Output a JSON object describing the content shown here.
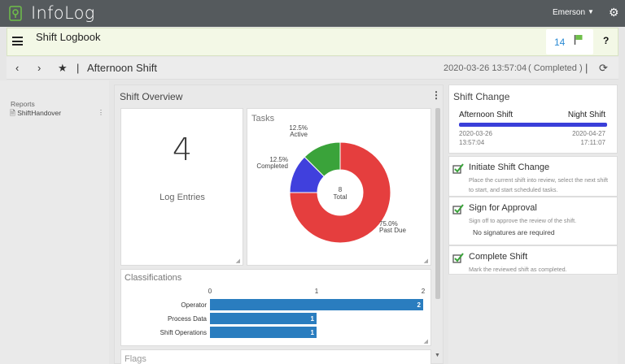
{
  "app": {
    "title": "InfoLog",
    "user": "Emerson",
    "icons": {
      "logo": "infolog-logo-icon",
      "caret": "caret-down-icon",
      "settings": "gear-icon"
    }
  },
  "logbook": {
    "title": "Shift Logbook",
    "flag_count": "14",
    "help": "?"
  },
  "nav": {
    "back": "‹",
    "forward": "›",
    "star": "★",
    "shift_name": "Afternoon Shift",
    "datetime": "2020-03-26 13:57:04",
    "status": "( Completed )"
  },
  "sidebar": {
    "section": "Reports",
    "items": [
      {
        "label": "ShiftHandover"
      }
    ]
  },
  "overview": {
    "title": "Shift Overview",
    "log_count": "4",
    "log_label": "Log Entries",
    "tasks_title": "Tasks",
    "classifications_title": "Classifications",
    "flags_title": "Flags"
  },
  "chart_data": [
    {
      "type": "pie",
      "title": "Tasks",
      "center_value": "8",
      "center_label": "Total",
      "slices": [
        {
          "label": "Past Due",
          "percent": 75.0,
          "color": "#e53e3e"
        },
        {
          "label": "Completed",
          "percent": 12.5,
          "color": "#4040dd"
        },
        {
          "label": "Active",
          "percent": 12.5,
          "color": "#3aa33a"
        }
      ],
      "slice_labels": [
        "75.0%",
        "12.5%",
        "12.5%"
      ]
    },
    {
      "type": "bar",
      "title": "Classifications",
      "orientation": "horizontal",
      "categories": [
        "Operator",
        "Process Data",
        "Shift Operations"
      ],
      "values": [
        2,
        1,
        1
      ],
      "xlim": [
        0,
        2
      ],
      "ticks": [
        "0",
        "1",
        "2"
      ],
      "color": "#2a7dbf"
    }
  ],
  "shift_change": {
    "title": "Shift Change",
    "from": {
      "name": "Afternoon Shift",
      "date": "2020-03-26",
      "time": "13:57:04"
    },
    "to": {
      "name": "Night Shift",
      "date": "2020-04-27",
      "time": "17:11:07"
    },
    "bar_color": "#3a3fd9"
  },
  "steps": [
    {
      "title": "Initiate Shift Change",
      "description": "Place the current shift into review, select the next shift to start, and start scheduled tasks.",
      "icon": "checked-box-icon"
    },
    {
      "title": "Sign for Approval",
      "description": "Sign off to approve the review of the shift.",
      "extra": "No signatures are required",
      "icon": "checked-box-icon"
    },
    {
      "title": "Complete Shift",
      "description": "Mark the reviewed shift as completed.",
      "icon": "checked-box-icon"
    }
  ]
}
